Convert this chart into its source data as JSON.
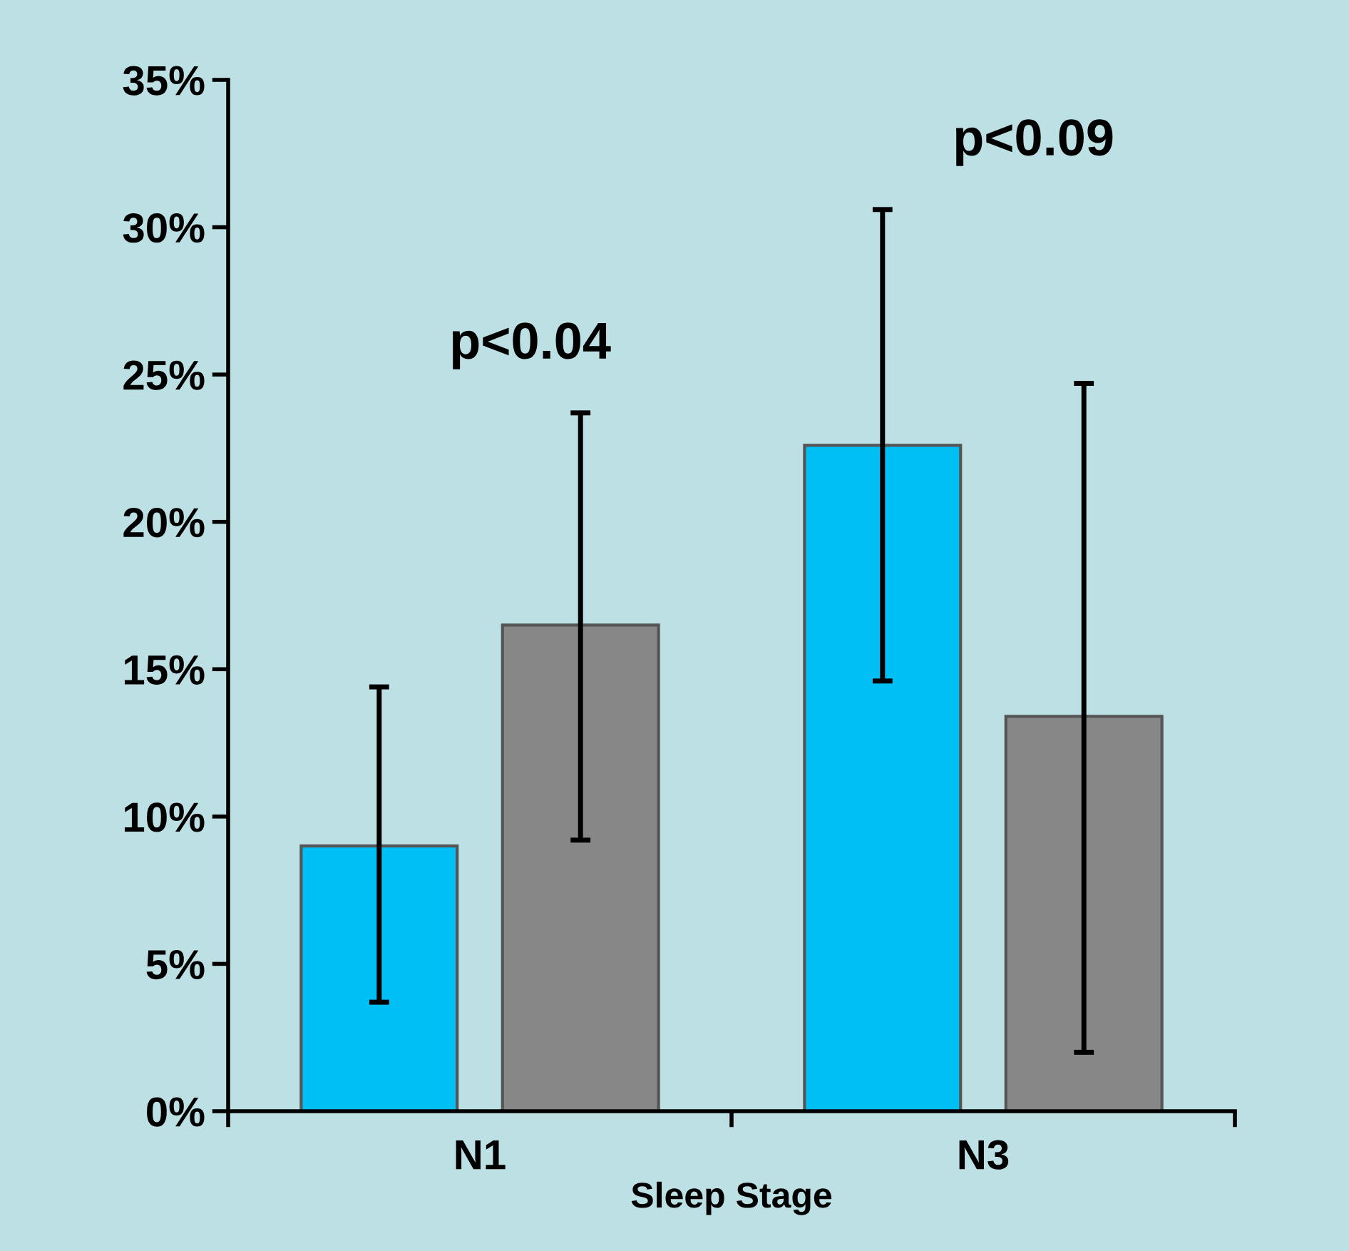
{
  "chart_data": {
    "type": "bar",
    "xlabel": "Sleep Stage",
    "categories": [
      "N1",
      "N3"
    ],
    "series": [
      {
        "color": "#00bff5",
        "values": [
          9.0,
          22.6
        ],
        "errors": [
          [
            3.7,
            14.4
          ],
          [
            14.6,
            30.6
          ]
        ]
      },
      {
        "color": "#878787",
        "values": [
          16.5,
          13.4
        ],
        "errors": [
          [
            9.2,
            23.7
          ],
          [
            2.0,
            24.7
          ]
        ]
      }
    ],
    "ylim": [
      0,
      35
    ],
    "yticks": [
      {
        "value": 0,
        "label": "0%"
      },
      {
        "value": 5,
        "label": "5%"
      },
      {
        "value": 10,
        "label": "10%"
      },
      {
        "value": 15,
        "label": "15%"
      },
      {
        "value": 20,
        "label": "20%"
      },
      {
        "value": 25,
        "label": "25%"
      },
      {
        "value": 30,
        "label": "30%"
      },
      {
        "value": 35,
        "label": "35%"
      }
    ],
    "annotations": [
      "p<0.04",
      "p<0.09"
    ],
    "grid": false,
    "legend": false
  }
}
